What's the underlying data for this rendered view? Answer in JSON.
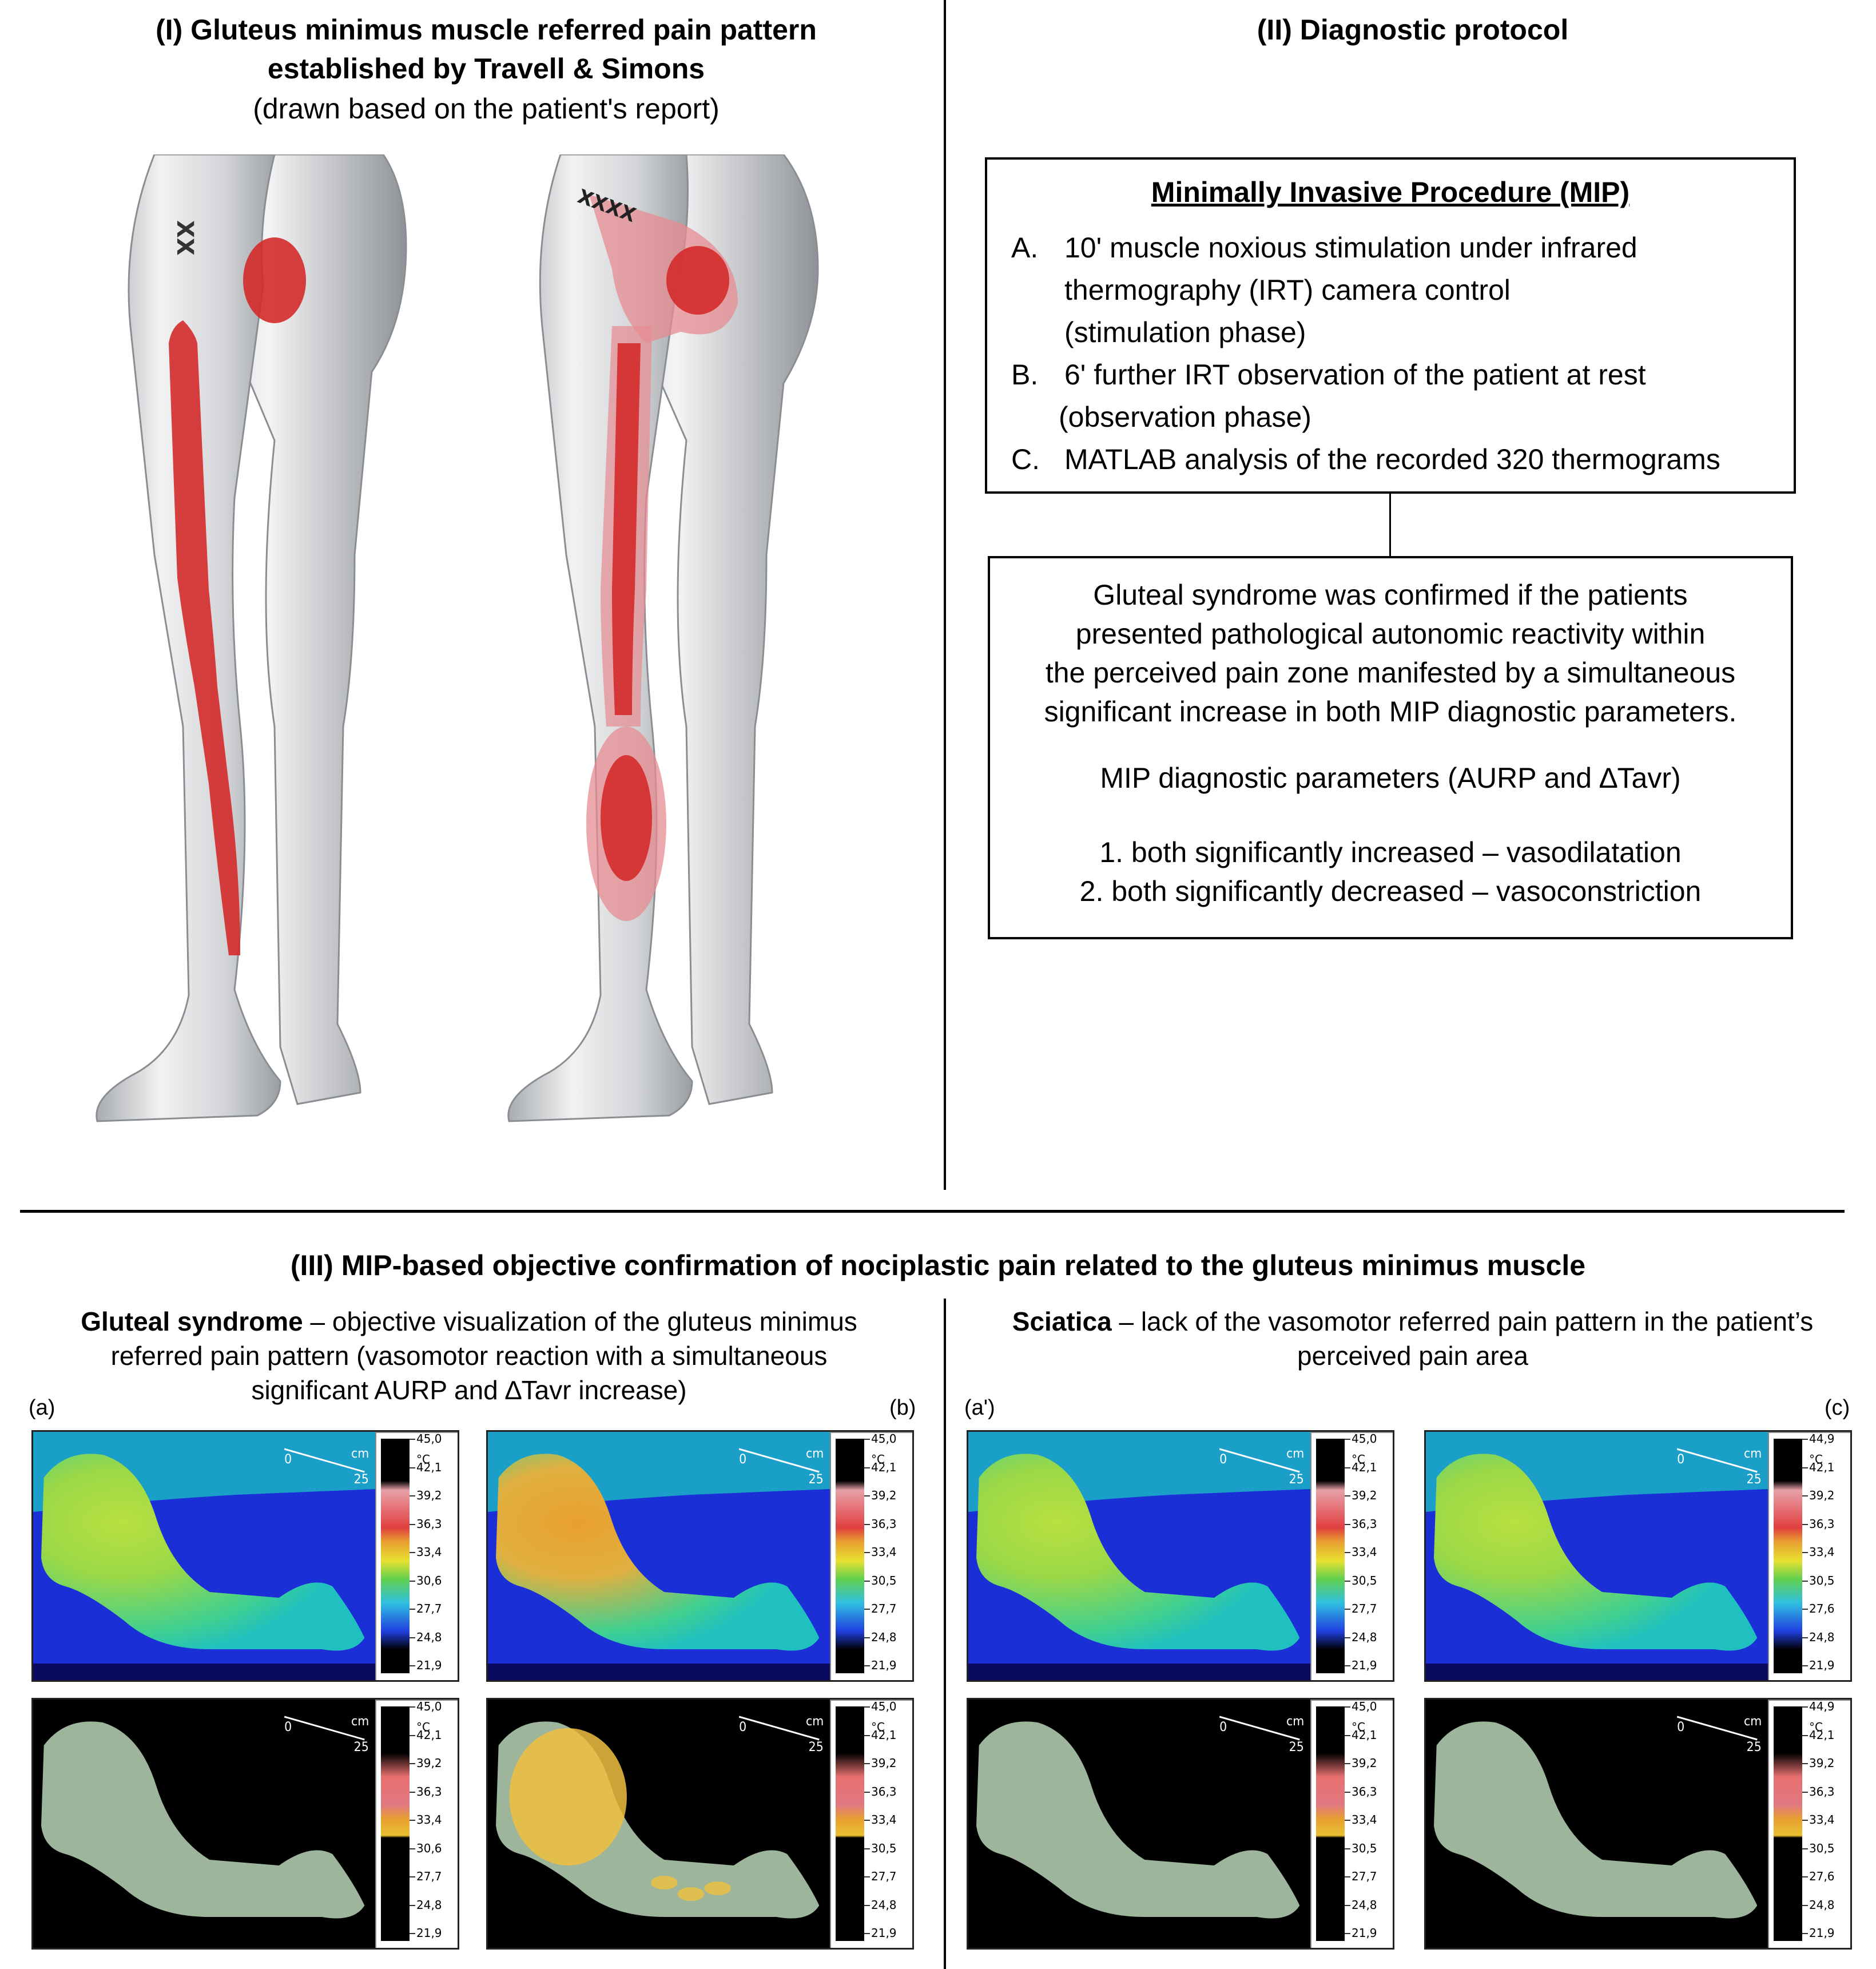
{
  "panel1": {
    "title_line1": "(I) Gluteus minimus muscle referred pain pattern",
    "title_line2": "established by Travell & Simons",
    "subtitle": "(drawn based on the patient's report)",
    "mark_left": "XX",
    "mark_right": "XXXX"
  },
  "panel2": {
    "title": "(II) Diagnostic protocol",
    "mip_box": {
      "heading": "Minimally Invasive Procedure (MIP)",
      "steps": [
        {
          "letter": "A.",
          "lines": [
            "10' muscle noxious stimulation under infrared",
            "thermography (IRT) camera control",
            "(stimulation phase)"
          ]
        },
        {
          "letter": "B.",
          "lines": [
            "6' further IRT observation of the patient at rest",
            "(observation phase)"
          ]
        },
        {
          "letter": "C.",
          "lines": [
            "MATLAB analysis of the recorded 320 thermograms"
          ]
        }
      ]
    },
    "criteria_box": {
      "lines": [
        "Gluteal syndrome was confirmed if the patients",
        "presented pathological autonomic reactivity within",
        "the perceived pain zone manifested by a simultaneous",
        "significant increase in both MIP diagnostic parameters."
      ],
      "params_title": "MIP diagnostic parameters (AURP and ∆Tavr)",
      "items": [
        "1.  both significantly increased – vasodilatation",
        "2.  both significantly decreased – vasoconstriction"
      ]
    }
  },
  "panel3": {
    "title": "(III)  MIP-based objective confirmation of nociplastic pain related to the gluteus minimus muscle",
    "left_caption": {
      "bold": "Gluteal syndrome",
      "line1": " – objective visualization of the gluteus minimus",
      "line2": "referred pain pattern  (vasomotor reaction with a simultaneous",
      "line3": "significant AURP and ∆Tavr increase)"
    },
    "right_caption": {
      "bold": "Sciatica",
      "line1": " – lack of the vasomotor referred pain pattern in the patient’s",
      "line2": "perceived pain area"
    },
    "labels": {
      "a": "(a)",
      "b": "(b)",
      "a_prime": "(a')",
      "c": "(c)"
    },
    "unit": "°C",
    "scale_label_0": "0",
    "scale_label_cm": "cm",
    "scale_label_25": "25",
    "scales": {
      "s1": [
        "45,0",
        "42,1",
        "39,2",
        "36,3",
        "33,4",
        "30,6",
        "27,7",
        "24,8",
        "21,9"
      ],
      "s2": [
        "45,0",
        "42,1",
        "39,2",
        "36,3",
        "33,4",
        "30,5",
        "27,7",
        "24,8",
        "21,9"
      ],
      "s3": [
        "45,0",
        "42,1",
        "39,2",
        "36,3",
        "33,4",
        "30,5",
        "27,7",
        "24,8",
        "21,9"
      ],
      "s4": [
        "44,9",
        "42,1",
        "39,2",
        "36,3",
        "33,4",
        "30,5",
        "27,6",
        "24,8",
        "21,9"
      ],
      "s5": [
        "45,0",
        "42,1",
        "39,2",
        "36,3",
        "33,4",
        "30,6",
        "27,7",
        "24,8",
        "21,9"
      ],
      "s6": [
        "45,0",
        "42,1",
        "39,2",
        "36,3",
        "33,4",
        "30,5",
        "27,7",
        "24,8",
        "21,9"
      ],
      "s7": [
        "45,0",
        "42,1",
        "39,2",
        "36,3",
        "33,4",
        "30,5",
        "27,7",
        "24,8",
        "21,9"
      ],
      "s8": [
        "44,9",
        "42,1",
        "39,2",
        "36,3",
        "33,4",
        "30,5",
        "27,6",
        "24,8",
        "21,9"
      ]
    },
    "colors": {
      "cold": "#1a2fd6",
      "bg": "#1aa7c6",
      "warm": "#f0c040",
      "hot": "#e0462a",
      "binary_body": "#9db59b"
    }
  }
}
